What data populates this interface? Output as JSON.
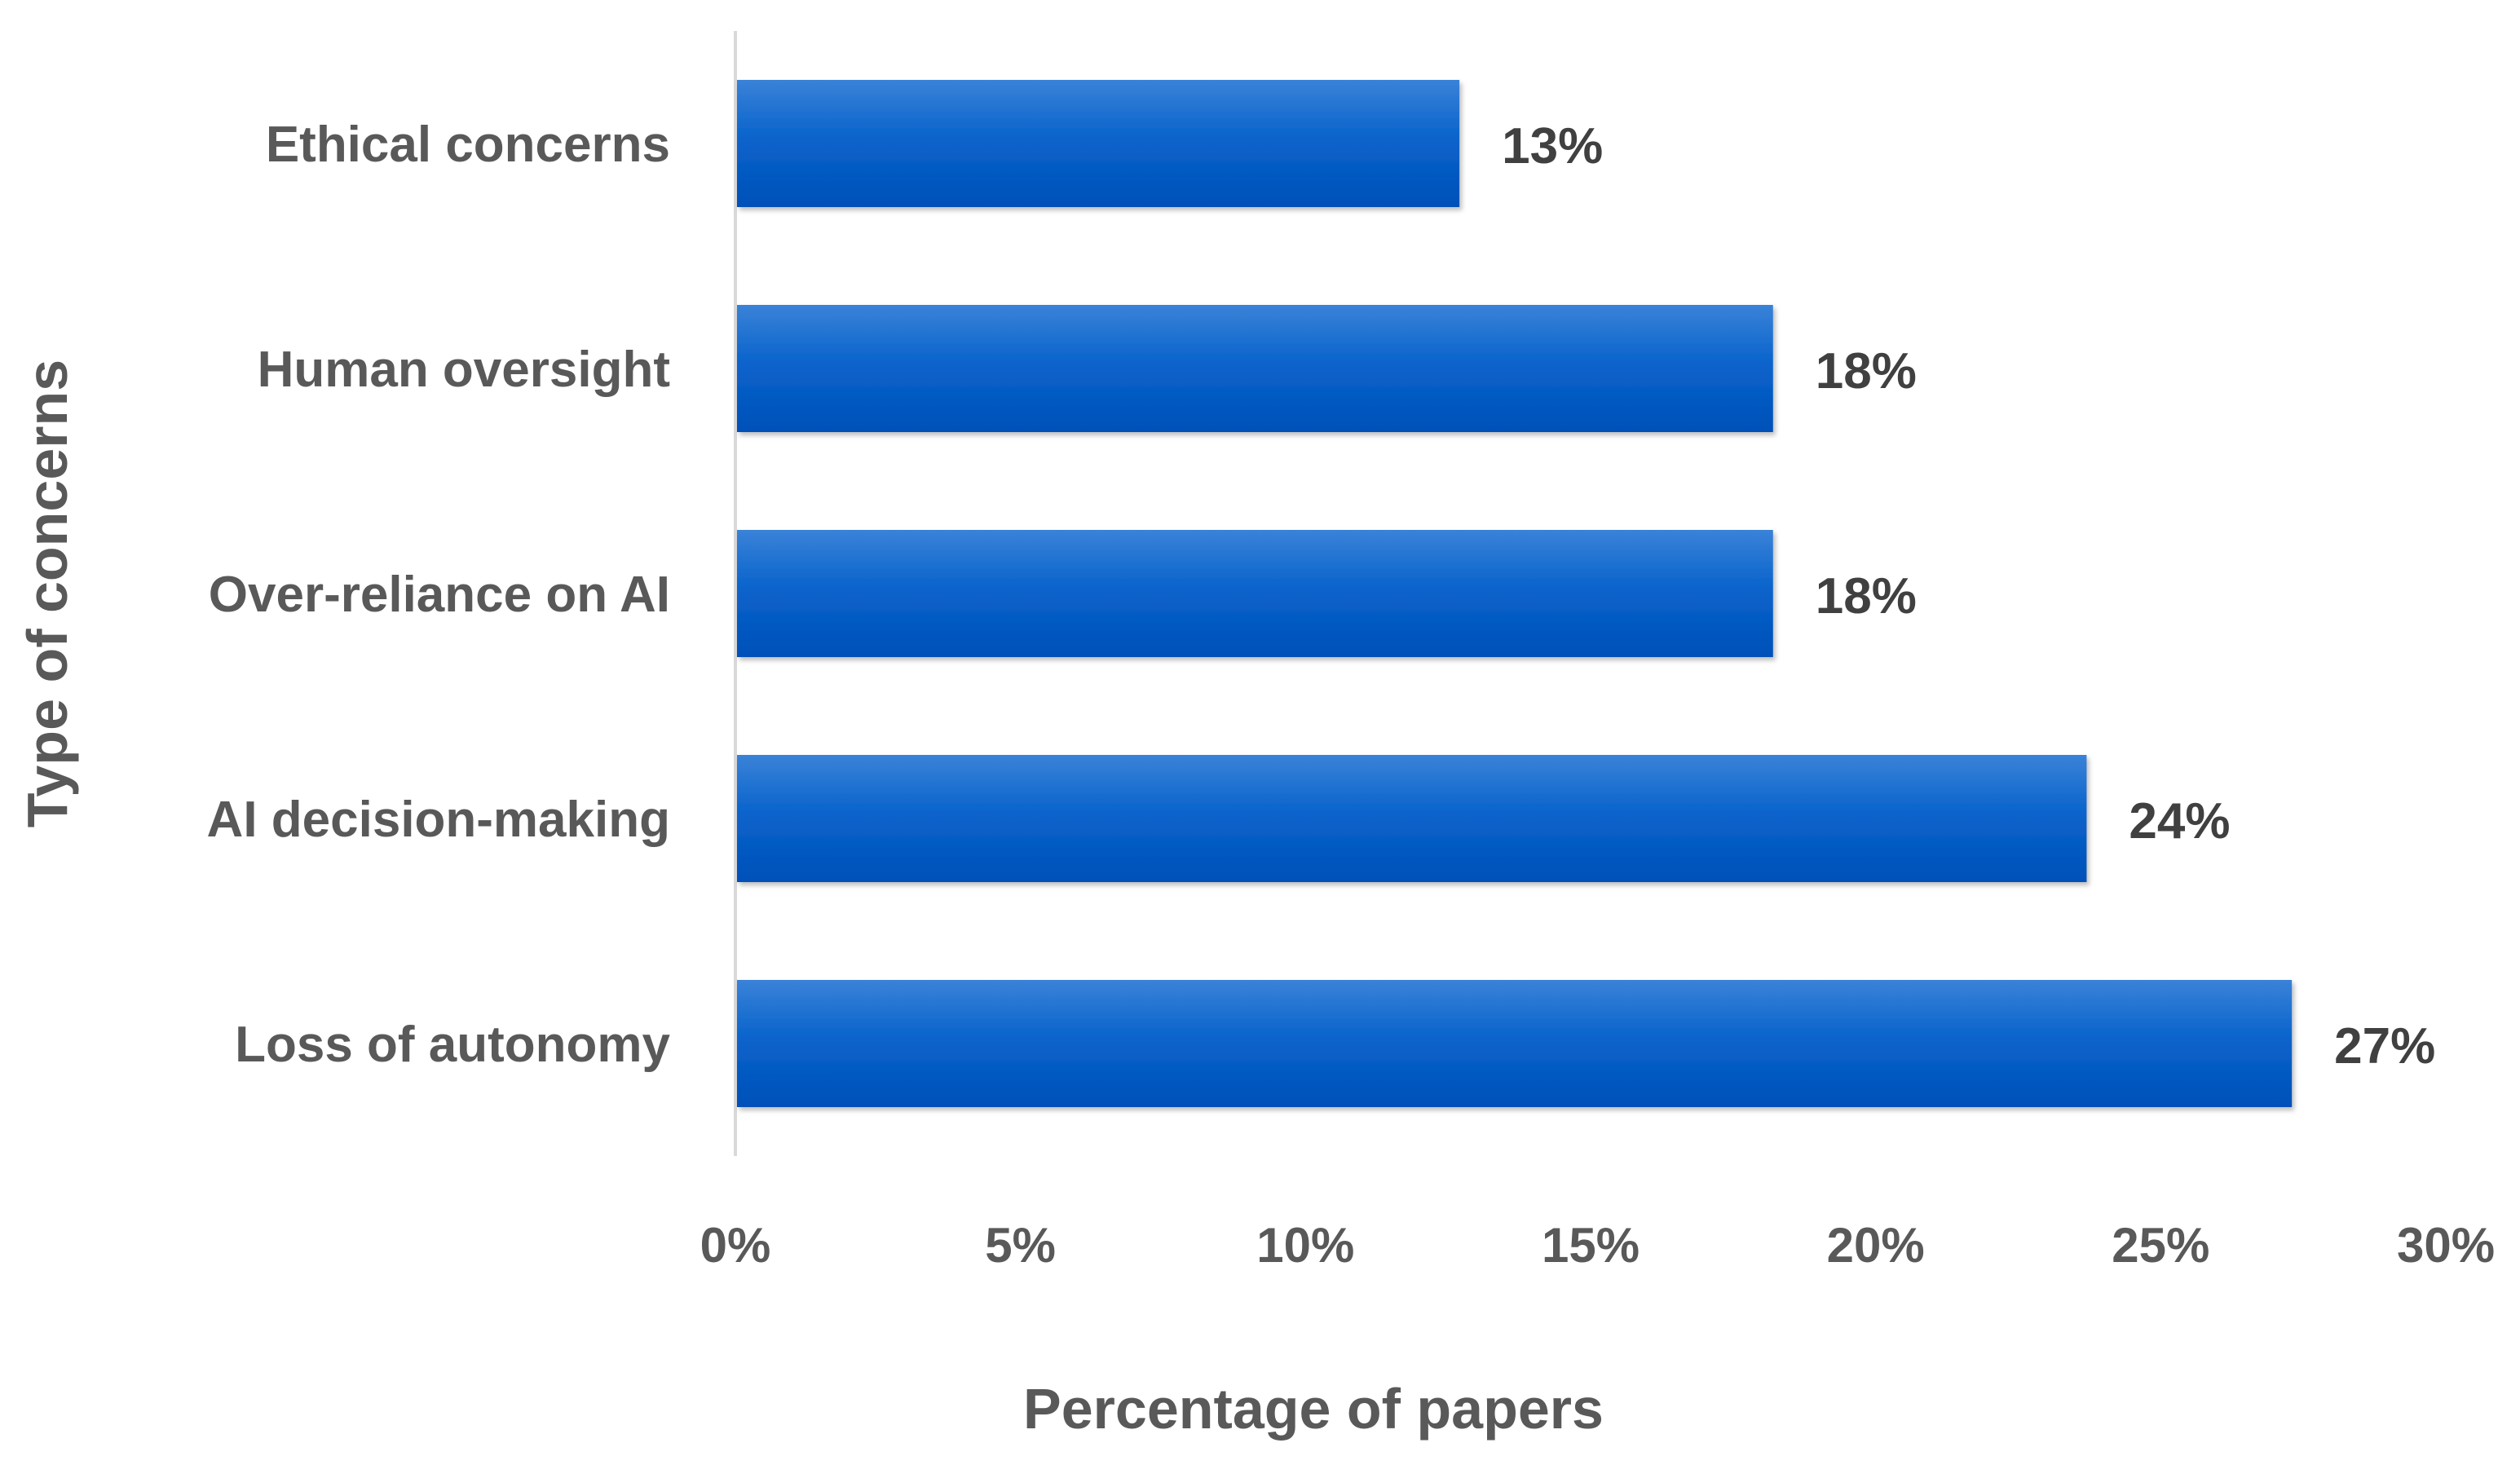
{
  "chart_data": {
    "type": "bar",
    "orientation": "horizontal",
    "categories": [
      "Ethical concerns",
      "Human oversight",
      "Over-reliance on AI",
      "AI decision-making",
      "Loss of autonomy"
    ],
    "values": [
      12.7,
      18.2,
      18.2,
      23.7,
      27.3
    ],
    "data_labels": [
      "13%",
      "18%",
      "18%",
      "24%",
      "27%"
    ],
    "xlabel": "Percentage of papers",
    "ylabel": "Type of concerns",
    "xlim": [
      0,
      30
    ],
    "xticks": [
      0,
      5,
      10,
      15,
      20,
      25,
      30
    ],
    "xtick_labels": [
      "0%",
      "5%",
      "10%",
      "15%",
      "20%",
      "25%",
      "30%"
    ],
    "grid": false,
    "legend": "none",
    "bar_color": "#0A64CC",
    "bar_color_light": "#3A82D8",
    "bar_color_dark": "#0050B8",
    "axis_color": "#D9D9D9"
  }
}
